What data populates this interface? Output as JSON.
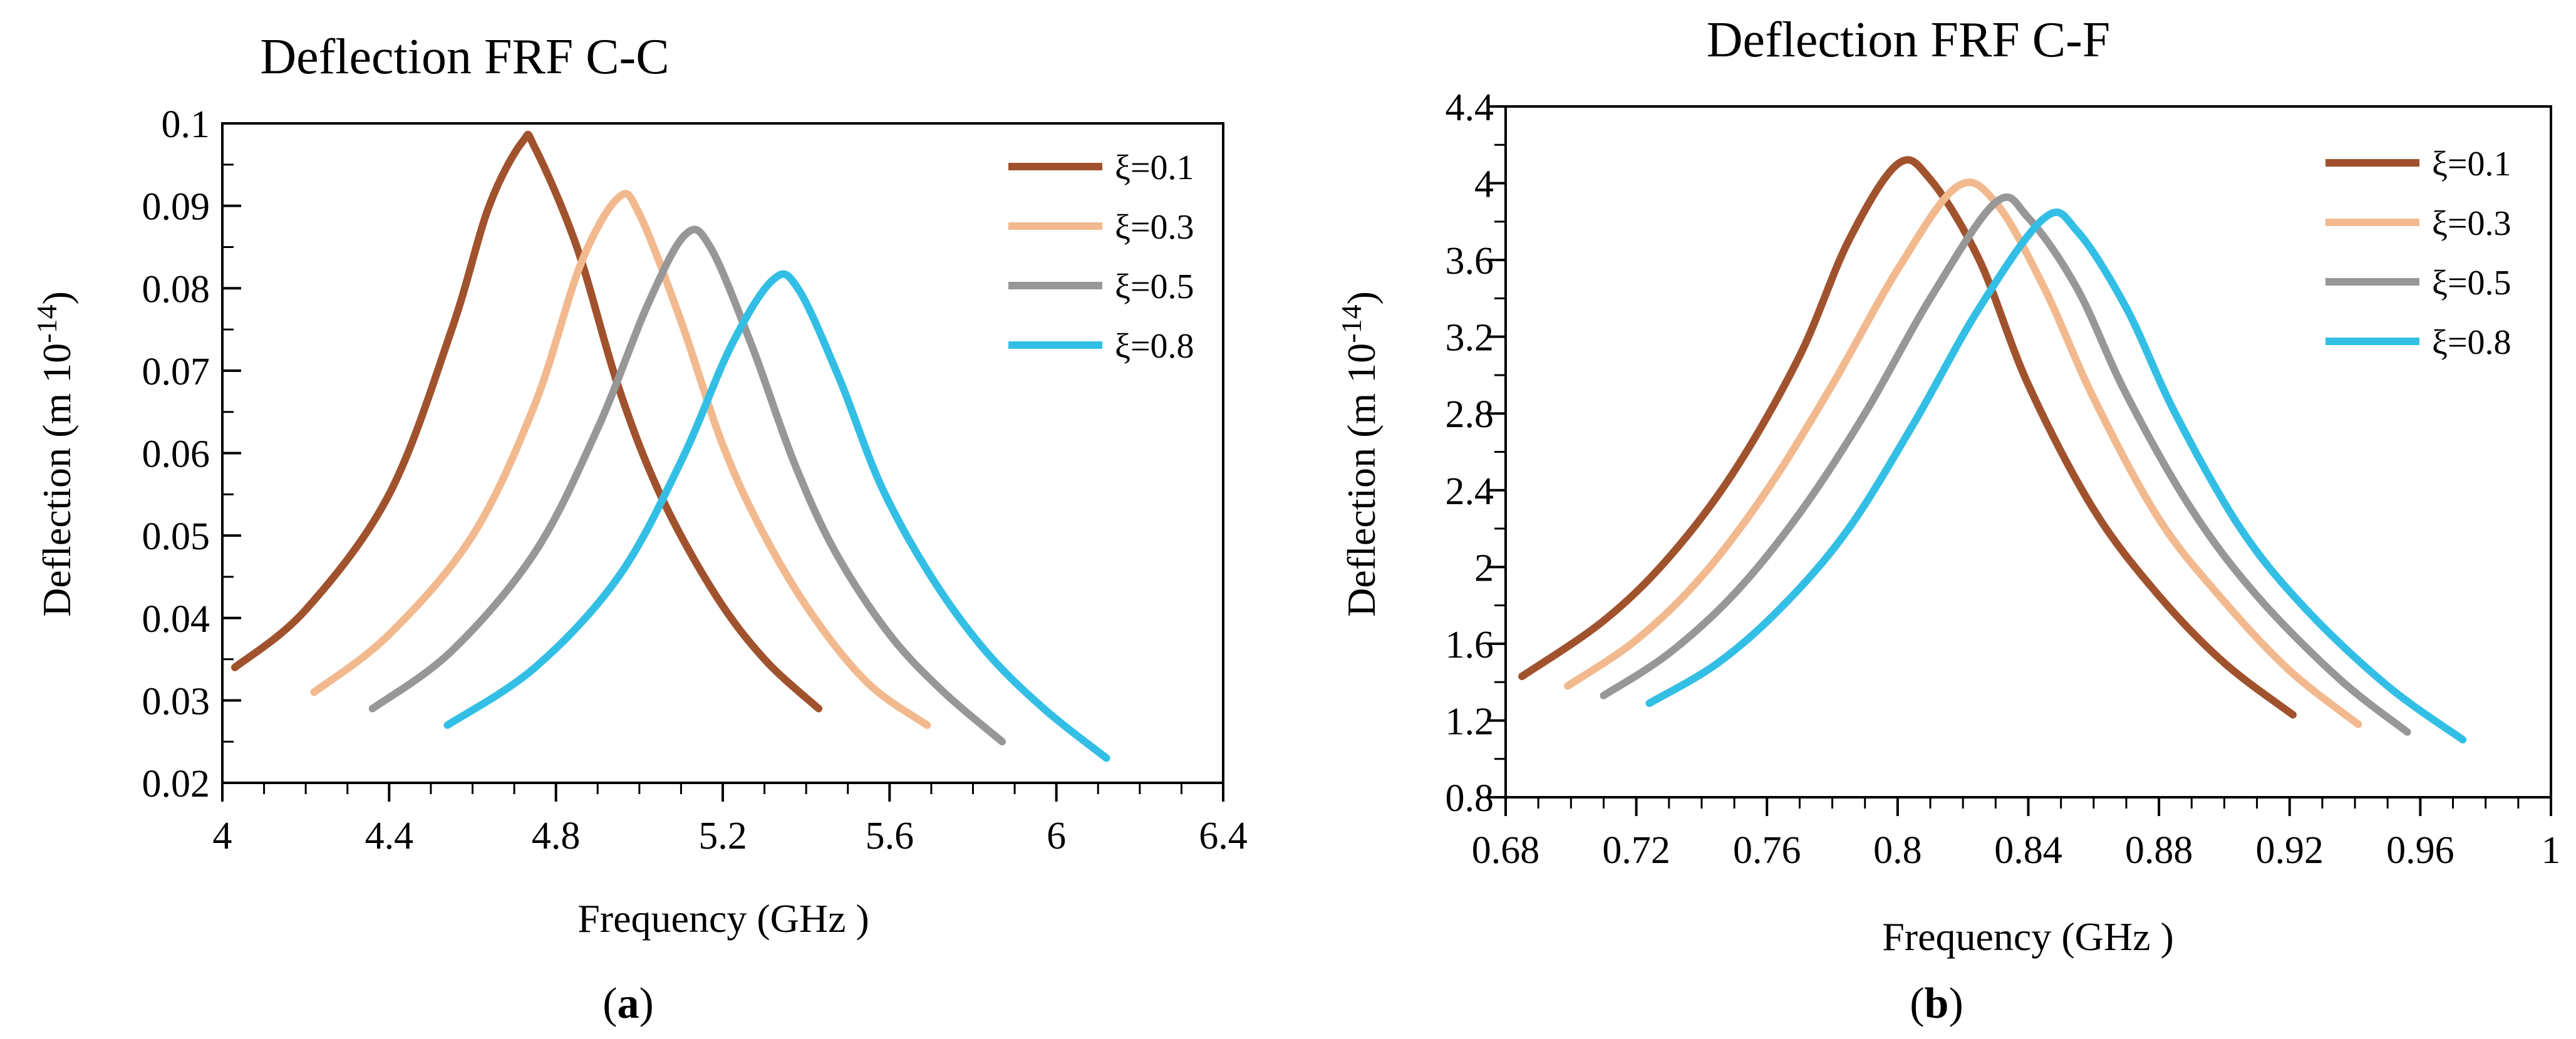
{
  "chart_data": [
    {
      "type": "line",
      "title": "Deflection FRF  C-C",
      "xlabel": "Frequency (GHz )",
      "ylabel": {
        "main": "Deflection (m 10",
        "sup": "-14",
        "end": ")"
      },
      "xlim": [
        4.0,
        6.4
      ],
      "ylim": [
        0.02,
        0.1
      ],
      "xticks": [
        4.0,
        4.4,
        4.8,
        5.2,
        5.6,
        6.0,
        6.4
      ],
      "xtick_labels": [
        "4",
        "4.4",
        "4.8",
        "5.2",
        "5.6",
        "6",
        "6.4"
      ],
      "yticks": [
        0.02,
        0.03,
        0.04,
        0.05,
        0.06,
        0.07,
        0.08,
        0.09,
        0.1
      ],
      "ytick_labels": [
        "0.02",
        "0.03",
        "0.04",
        "0.05",
        "0.06",
        "0.07",
        "0.08",
        "0.09",
        "0.1"
      ],
      "legend_position": "top-right",
      "caption": {
        "open": "(",
        "letter": "a",
        "close": ")"
      },
      "series": [
        {
          "name": "ξ=0.1",
          "color": "#a0522d",
          "x": [
            4.03,
            4.2,
            4.4,
            4.55,
            4.64,
            4.72,
            4.75,
            4.85,
            4.95,
            5.05,
            5.18,
            5.3,
            5.43
          ],
          "y": [
            0.034,
            0.041,
            0.055,
            0.075,
            0.09,
            0.0978,
            0.097,
            0.085,
            0.068,
            0.055,
            0.043,
            0.035,
            0.029
          ]
        },
        {
          "name": "ξ=0.3",
          "color": "#f2b98e",
          "x": [
            4.22,
            4.4,
            4.6,
            4.75,
            4.86,
            4.95,
            5.0,
            5.1,
            5.2,
            5.3,
            5.42,
            5.55,
            5.69
          ],
          "y": [
            0.031,
            0.038,
            0.05,
            0.066,
            0.083,
            0.091,
            0.089,
            0.076,
            0.061,
            0.05,
            0.04,
            0.032,
            0.027
          ]
        },
        {
          "name": "ξ=0.5",
          "color": "#979797",
          "x": [
            4.36,
            4.55,
            4.75,
            4.9,
            5.02,
            5.11,
            5.17,
            5.27,
            5.37,
            5.47,
            5.6,
            5.73,
            5.87
          ],
          "y": [
            0.029,
            0.036,
            0.048,
            0.063,
            0.078,
            0.0865,
            0.085,
            0.073,
            0.059,
            0.048,
            0.038,
            0.031,
            0.025
          ]
        },
        {
          "name": "ξ=0.8",
          "color": "#33bfe5",
          "x": [
            4.54,
            4.75,
            4.95,
            5.1,
            5.22,
            5.32,
            5.38,
            5.48,
            5.58,
            5.7,
            5.83,
            5.97,
            6.12
          ],
          "y": [
            0.027,
            0.034,
            0.045,
            0.059,
            0.073,
            0.081,
            0.08,
            0.069,
            0.056,
            0.045,
            0.036,
            0.029,
            0.023
          ]
        }
      ]
    },
    {
      "type": "line",
      "title": "Deflection FRF  C-F",
      "xlabel": "Frequency (GHz )",
      "ylabel": {
        "main": "Deflection (m 10",
        "sup": "-14",
        "end": ")"
      },
      "xlim": [
        0.68,
        1.0
      ],
      "ylim": [
        0.8,
        4.4
      ],
      "xticks": [
        0.68,
        0.72,
        0.76,
        0.8,
        0.84,
        0.88,
        0.92,
        0.96,
        1.0
      ],
      "xtick_labels": [
        "0.68",
        "0.72",
        "0.76",
        "0.8",
        "0.84",
        "0.88",
        "0.92",
        "0.96",
        "1"
      ],
      "yticks": [
        0.8,
        1.2,
        1.6,
        2.0,
        2.4,
        2.8,
        3.2,
        3.6,
        4.0,
        4.4
      ],
      "ytick_labels": [
        "0.8",
        "1.2",
        "1.6",
        "2",
        "2.4",
        "2.8",
        "3.2",
        "3.6",
        "4",
        "4.4"
      ],
      "legend_position": "top-right",
      "caption": {
        "open": "(",
        "letter": "b",
        "close": ")"
      },
      "series": [
        {
          "name": "ξ=0.1",
          "color": "#a0522d",
          "x": [
            0.685,
            0.71,
            0.73,
            0.75,
            0.77,
            0.785,
            0.8,
            0.81,
            0.825,
            0.84,
            0.86,
            0.88,
            0.9,
            0.921
          ],
          "y": [
            1.43,
            1.72,
            2.05,
            2.5,
            3.1,
            3.7,
            4.1,
            4.02,
            3.6,
            2.95,
            2.3,
            1.85,
            1.5,
            1.23
          ]
        },
        {
          "name": "ξ=0.3",
          "color": "#f2b98e",
          "x": [
            0.699,
            0.72,
            0.74,
            0.76,
            0.78,
            0.8,
            0.818,
            0.83,
            0.845,
            0.86,
            0.88,
            0.9,
            0.92,
            0.941
          ],
          "y": [
            1.38,
            1.62,
            1.95,
            2.4,
            2.95,
            3.55,
            3.98,
            3.9,
            3.45,
            2.88,
            2.25,
            1.82,
            1.46,
            1.18
          ]
        },
        {
          "name": "ξ=0.5",
          "color": "#979797",
          "x": [
            0.71,
            0.73,
            0.75,
            0.77,
            0.79,
            0.81,
            0.83,
            0.84,
            0.855,
            0.87,
            0.89,
            0.91,
            0.935,
            0.956
          ],
          "y": [
            1.33,
            1.55,
            1.86,
            2.28,
            2.8,
            3.4,
            3.9,
            3.82,
            3.45,
            2.9,
            2.3,
            1.85,
            1.42,
            1.14
          ]
        },
        {
          "name": "ξ=0.8",
          "color": "#33bfe5",
          "x": [
            0.724,
            0.745,
            0.765,
            0.785,
            0.805,
            0.825,
            0.845,
            0.855,
            0.87,
            0.885,
            0.905,
            0.925,
            0.95,
            0.973
          ],
          "y": [
            1.29,
            1.5,
            1.8,
            2.2,
            2.75,
            3.35,
            3.82,
            3.75,
            3.35,
            2.8,
            2.2,
            1.78,
            1.38,
            1.1
          ]
        }
      ]
    }
  ]
}
